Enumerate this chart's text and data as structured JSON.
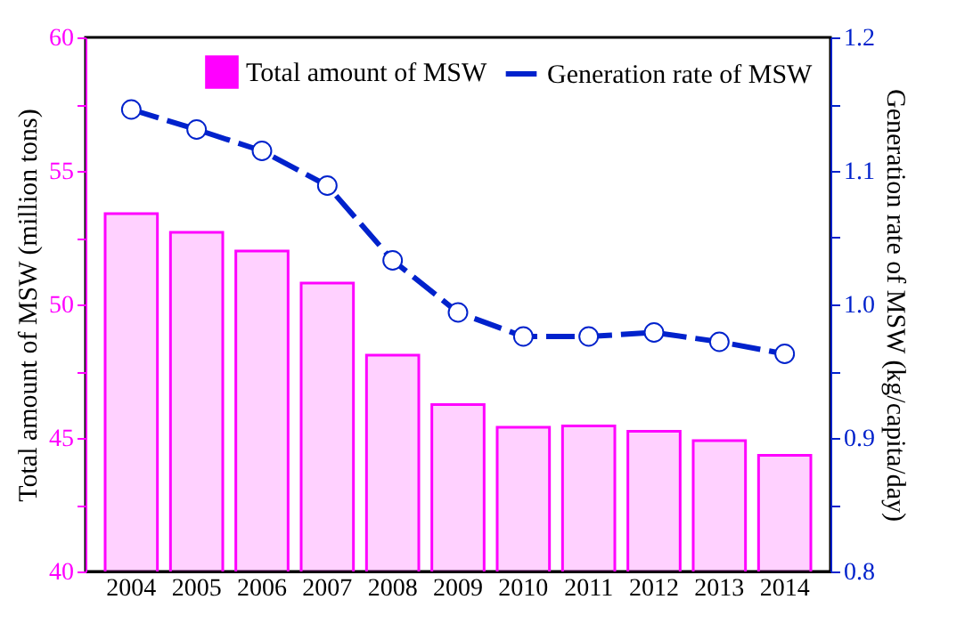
{
  "chart_data": {
    "type": "bar",
    "xlabel": null,
    "ylabel": "Total amount of MSW (million tons)",
    "y2label": "Generation rate of MSW (kg/capita/day)",
    "categories": [
      "2004",
      "2005",
      "2006",
      "2007",
      "2008",
      "2009",
      "2010",
      "2011",
      "2012",
      "2013",
      "2014"
    ],
    "series": [
      {
        "name": "Total amount of MSW",
        "color": "#ff00ff",
        "values": [
          53.4,
          52.7,
          52.0,
          50.8,
          48.1,
          46.25,
          45.4,
          45.45,
          45.25,
          44.9,
          44.35
        ]
      },
      {
        "name": "Generation rate of MSW",
        "type": "line",
        "axis": "y2",
        "color": "#0022cc",
        "line_style": "dashed",
        "marker": "circle",
        "values": [
          1.146,
          1.131,
          1.115,
          1.089,
          1.033,
          0.994,
          0.976,
          0.976,
          0.979,
          0.972,
          0.963
        ]
      }
    ],
    "ylim": [
      40,
      60
    ],
    "yticks": [
      40,
      {
        "value": 42.5,
        "label": null
      },
      45,
      {
        "value": 47.5,
        "label": null
      },
      50,
      {
        "value": 52.5,
        "label": null
      },
      55,
      {
        "value": 57.5,
        "label": null
      },
      60
    ],
    "y2lim": [
      0.8,
      1.2
    ],
    "y2ticks": [
      {
        "value": 0.8,
        "label": "0.8"
      },
      {
        "value": 0.85,
        "label": null
      },
      {
        "value": 0.9,
        "label": "0.9"
      },
      {
        "value": 0.95,
        "label": null
      },
      {
        "value": 1.0,
        "label": "1.0"
      },
      {
        "value": 1.05,
        "label": null
      },
      {
        "value": 1.1,
        "label": "1.1"
      },
      {
        "value": 1.15,
        "label": null
      },
      {
        "value": 1.2,
        "label": "1.2"
      }
    ],
    "legend": "top right",
    "grid": false
  }
}
